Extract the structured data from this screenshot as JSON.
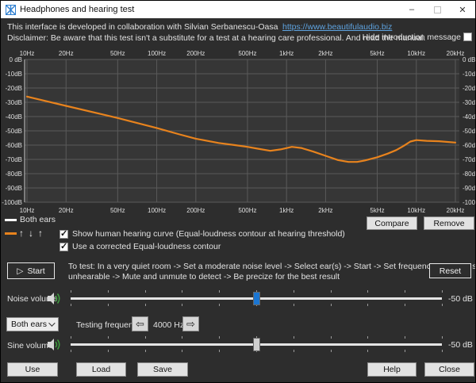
{
  "window": {
    "title": "Headphones and hearing test",
    "minimize_glyph": "–",
    "close_glyph": "✕"
  },
  "intro": {
    "line1": "This interface is developed in collaboration with Silvian Serbanescu-Oasa",
    "link": "https://www.beautifulaudio.biz",
    "line2": "Disclaimer: Be aware that this test isn't a substitute for a test at a hearing care professional. And read the manual.",
    "hide_label": "Hide introduction message",
    "hide_checked": false
  },
  "chart_data": {
    "type": "line",
    "x_scale": "log",
    "xlim": [
      10,
      20000
    ],
    "ylim": [
      -100,
      0
    ],
    "x_ticks": [
      {
        "f": 10,
        "label": "10Hz"
      },
      {
        "f": 20,
        "label": "20Hz"
      },
      {
        "f": 50,
        "label": "50Hz"
      },
      {
        "f": 100,
        "label": "100Hz"
      },
      {
        "f": 200,
        "label": "200Hz"
      },
      {
        "f": 500,
        "label": "500Hz"
      },
      {
        "f": 1000,
        "label": "1kHz"
      },
      {
        "f": 2000,
        "label": "2kHz"
      },
      {
        "f": 5000,
        "label": "5kHz"
      },
      {
        "f": 10000,
        "label": "10kHz"
      },
      {
        "f": 20000,
        "label": "20kHz"
      }
    ],
    "y_ticks": [
      {
        "v": 0,
        "label": "0 dB"
      },
      {
        "v": -10,
        "label": "-10dB"
      },
      {
        "v": -20,
        "label": "-20dB"
      },
      {
        "v": -30,
        "label": "-30dB"
      },
      {
        "v": -40,
        "label": "-40dB"
      },
      {
        "v": -50,
        "label": "-50dB"
      },
      {
        "v": -60,
        "label": "-60dB"
      },
      {
        "v": -70,
        "label": "-70dB"
      },
      {
        "v": -80,
        "label": "-80dB"
      },
      {
        "v": -90,
        "label": "-90dB"
      },
      {
        "v": -100,
        "label": "-100dB"
      }
    ],
    "series": [
      {
        "name": "Equal-loudness contour at hearing threshold",
        "color": "#e8831d",
        "points": [
          [
            10,
            -26
          ],
          [
            20,
            -32.5
          ],
          [
            50,
            -41
          ],
          [
            100,
            -48
          ],
          [
            150,
            -52.5
          ],
          [
            200,
            -55.5
          ],
          [
            300,
            -58.5
          ],
          [
            400,
            -60
          ],
          [
            500,
            -61.2
          ],
          [
            600,
            -62.5
          ],
          [
            750,
            -64
          ],
          [
            900,
            -63
          ],
          [
            1100,
            -61.2
          ],
          [
            1300,
            -62
          ],
          [
            1600,
            -64.5
          ],
          [
            2000,
            -67.5
          ],
          [
            2500,
            -70.5
          ],
          [
            3000,
            -71.8
          ],
          [
            3500,
            -71.8
          ],
          [
            4000,
            -70.8
          ],
          [
            5000,
            -68.5
          ],
          [
            6000,
            -66
          ],
          [
            7000,
            -63.5
          ],
          [
            8000,
            -60.5
          ],
          [
            9000,
            -57.5
          ],
          [
            10000,
            -56.5
          ],
          [
            12000,
            -57
          ],
          [
            15000,
            -57.3
          ],
          [
            20000,
            -58.2
          ]
        ]
      }
    ],
    "legend": [
      {
        "label": "Both ears",
        "color": "#ffffff"
      }
    ],
    "colors": {
      "plot_bg": "#363636",
      "grid": "#5a5a5a",
      "axis": "#c8c8c8",
      "label": "#dfdfdf"
    }
  },
  "legend": {
    "both_ears_label": "Both ears",
    "both_ears_color": "#ffffff",
    "curve_color": "#e8831d",
    "arrow_glyphs": [
      "↑",
      "↓",
      "↑"
    ]
  },
  "options": {
    "show_curve": {
      "label": "Show human hearing curve (Equal-loudness contour at hearing threshold)",
      "checked": true
    },
    "corrected": {
      "label": "Use a corrected Equal-loudness contour",
      "checked": true
    }
  },
  "instructions": {
    "line1": "To test: In a very quiet room -> Set a moderate noise level -> Select ear(s) -> Start -> Set frequency -> Lower sine volume until",
    "line2": "unhearable -> Mute and unmute to detect -> Be precize for the best result"
  },
  "buttons": {
    "compare": "Compare",
    "remove": "Remove",
    "start": "Start",
    "start_icon": "▷",
    "reset": "Reset",
    "use": "Use",
    "load": "Load",
    "save": "Save",
    "help": "Help",
    "close": "Close"
  },
  "noise_volume": {
    "label": "Noise volume",
    "value_label": "-50 dB",
    "percent": 50,
    "thumb_color": "#1b76d2"
  },
  "sine_volume": {
    "label": "Sine volume",
    "value_label": "-50 dB",
    "percent": 50,
    "thumb_color": "#cfcfcf"
  },
  "ear_select": {
    "value": "Both ears"
  },
  "testing_frequency": {
    "label": "Testing frequency",
    "value": "4000 Hz",
    "left_glyph": "⇦",
    "right_glyph": "⇨"
  }
}
